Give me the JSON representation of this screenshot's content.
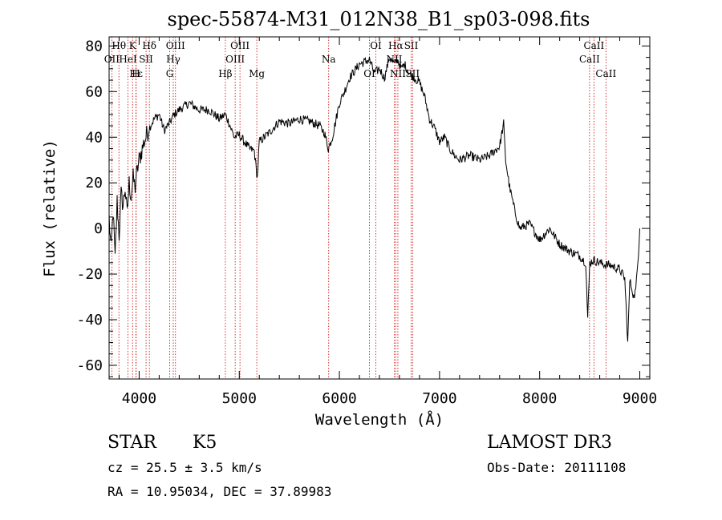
{
  "chart_data": {
    "type": "line",
    "title": "spec-55874-M31_012N38_B1_sp03-098.fits",
    "xlabel": "Wavelength (Å)",
    "ylabel": "Flux (relative)",
    "xlim": [
      3700,
      9100
    ],
    "ylim": [
      -66,
      84
    ],
    "xticks": [
      4000,
      5000,
      6000,
      7000,
      8000,
      9000
    ],
    "yticks": [
      -60,
      -40,
      -20,
      0,
      20,
      40,
      60,
      80
    ],
    "grid": false,
    "line_color": "#000000",
    "marker_color": "#cc0000",
    "series": [
      {
        "name": "flux",
        "x": [
          3700,
          3720,
          3740,
          3760,
          3780,
          3800,
          3820,
          3840,
          3860,
          3880,
          3900,
          3920,
          3940,
          3960,
          3980,
          4000,
          4050,
          4100,
          4150,
          4200,
          4250,
          4300,
          4350,
          4400,
          4500,
          4600,
          4700,
          4800,
          4860,
          4900,
          4950,
          5000,
          5050,
          5100,
          5150,
          5180,
          5200,
          5300,
          5400,
          5500,
          5600,
          5700,
          5800,
          5850,
          5890,
          5930,
          6000,
          6050,
          6100,
          6200,
          6300,
          6350,
          6400,
          6450,
          6500,
          6550,
          6580,
          6620,
          6650,
          6700,
          6750,
          6800,
          6850,
          6900,
          6950,
          7000,
          7050,
          7100,
          7150,
          7200,
          7300,
          7400,
          7500,
          7600,
          7640,
          7660,
          7700,
          7750,
          7800,
          7900,
          8000,
          8100,
          8200,
          8300,
          8400,
          8460,
          8480,
          8500,
          8540,
          8600,
          8660,
          8700,
          8800,
          8850,
          8880,
          8900,
          8920,
          8940,
          8960,
          8980,
          9000
        ],
        "y": [
          5,
          -10,
          8,
          -14,
          12,
          -3,
          15,
          10,
          18,
          6,
          20,
          14,
          22,
          18,
          25,
          30,
          38,
          44,
          48,
          50,
          43,
          46,
          50,
          52,
          55,
          52,
          52,
          48,
          50,
          46,
          40,
          41,
          38,
          35,
          34,
          22,
          38,
          42,
          47,
          46,
          48,
          47,
          45,
          42,
          35,
          40,
          55,
          60,
          66,
          72,
          74,
          68,
          70,
          66,
          75,
          72,
          74,
          70,
          72,
          68,
          66,
          64,
          58,
          48,
          44,
          38,
          40,
          35,
          32,
          30,
          32,
          30,
          32,
          36,
          46,
          30,
          18,
          8,
          0,
          2,
          -5,
          0,
          -7,
          -10,
          -12,
          -15,
          -40,
          -15,
          -14,
          -15,
          -16,
          -16,
          -18,
          -22,
          -50,
          -23,
          -26,
          -30,
          -27,
          -15,
          0
        ]
      }
    ],
    "lines": [
      {
        "label": "Hθ",
        "wavelength": 3798,
        "row": 0
      },
      {
        "label": "K",
        "wavelength": 3934,
        "row": 0
      },
      {
        "label": "Hδ",
        "wavelength": 4102,
        "row": 0
      },
      {
        "label": "OII",
        "wavelength": 3727,
        "row": 1
      },
      {
        "label": "HeI",
        "wavelength": 3889,
        "row": 1
      },
      {
        "label": "SII",
        "wavelength": 4069,
        "row": 1
      },
      {
        "label": "OIII",
        "wavelength": 4363,
        "row": 0
      },
      {
        "label": "Hγ",
        "wavelength": 4341,
        "row": 1
      },
      {
        "label": "G",
        "wavelength": 4305,
        "row": 2
      },
      {
        "label": "OIII",
        "wavelength": 5007,
        "row": 0
      },
      {
        "label": "OIII",
        "wavelength": 4959,
        "row": 1
      },
      {
        "label": "Hβ",
        "wavelength": 4861,
        "row": 2
      },
      {
        "label": "Mg",
        "wavelength": 5175,
        "row": 2
      },
      {
        "label": "OI",
        "wavelength": 6300,
        "row": 2
      },
      {
        "label": "Hε",
        "wavelength": 3970,
        "row": 2
      },
      {
        "label": "H",
        "wavelength": 3968,
        "row": 2
      },
      {
        "label": "Na",
        "wavelength": 5893,
        "row": 1
      },
      {
        "label": "OI",
        "wavelength": 6364,
        "row": 0
      },
      {
        "label": "Hα",
        "wavelength": 6563,
        "row": 0
      },
      {
        "label": "SII",
        "wavelength": 6717,
        "row": 0
      },
      {
        "label": "NII",
        "wavelength": 6548,
        "row": 1
      },
      {
        "label": "NII",
        "wavelength": 6584,
        "row": 2
      },
      {
        "label": "SII",
        "wavelength": 6731,
        "row": 2
      },
      {
        "label": "CaII",
        "wavelength": 8542,
        "row": 0
      },
      {
        "label": "CaII",
        "wavelength": 8498,
        "row": 1
      },
      {
        "label": "CaII",
        "wavelength": 8662,
        "row": 2
      }
    ]
  },
  "info": {
    "class": "STAR",
    "subclass": "K5",
    "survey": "LAMOST DR3",
    "cz": "cz = 25.5 ± 3.5 km/s",
    "obs_date": "Obs-Date: 20111108",
    "radec": "RA =  10.95034, DEC =  37.89983"
  }
}
